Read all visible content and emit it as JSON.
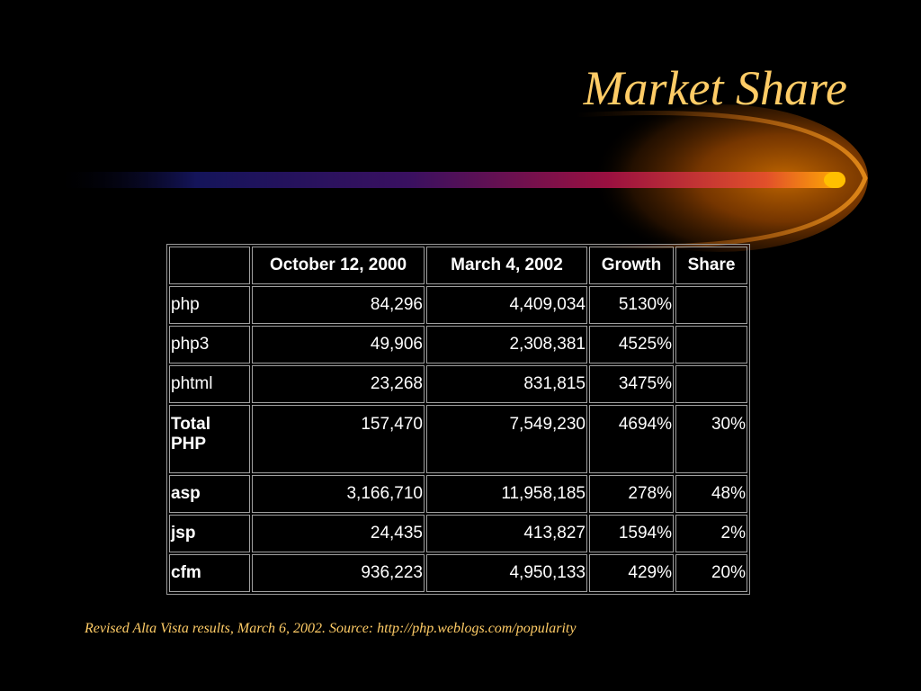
{
  "slide": {
    "title": "Market Share",
    "footnote": "Revised Alta Vista results, March 6, 2002. Source: http://php.weblogs.com/popularity"
  },
  "colors": {
    "background": "#000000",
    "title": "#FFCC66",
    "text": "#FFFFFF",
    "table_border": "#A0A0A0",
    "comet_tail_start": "#1a1a5e",
    "comet_tail_mid": "#8a1040",
    "comet_head": "#FF9900"
  },
  "table": {
    "headers": [
      "",
      "October 12, 2000",
      "March 4, 2002",
      "Growth",
      "Share"
    ],
    "rows": [
      {
        "label": "php",
        "oct": "84,296",
        "mar": "4,409,034",
        "growth": "5130%",
        "share": ""
      },
      {
        "label": "php3",
        "oct": "49,906",
        "mar": "2,308,381",
        "growth": "4525%",
        "share": ""
      },
      {
        "label": "phtml",
        "oct": "23,268",
        "mar": "831,815",
        "growth": "3475%",
        "share": ""
      },
      {
        "label": "Total PHP",
        "oct": "157,470",
        "mar": "7,549,230",
        "growth": "4694%",
        "share": "30%"
      },
      {
        "label": "asp",
        "oct": "3,166,710",
        "mar": "11,958,185",
        "growth": "278%",
        "share": "48%"
      },
      {
        "label": "jsp",
        "oct": "24,435",
        "mar": "413,827",
        "growth": "1594%",
        "share": "2%"
      },
      {
        "label": "cfm",
        "oct": "936,223",
        "mar": "4,950,133",
        "growth": "429%",
        "share": "20%"
      }
    ]
  }
}
